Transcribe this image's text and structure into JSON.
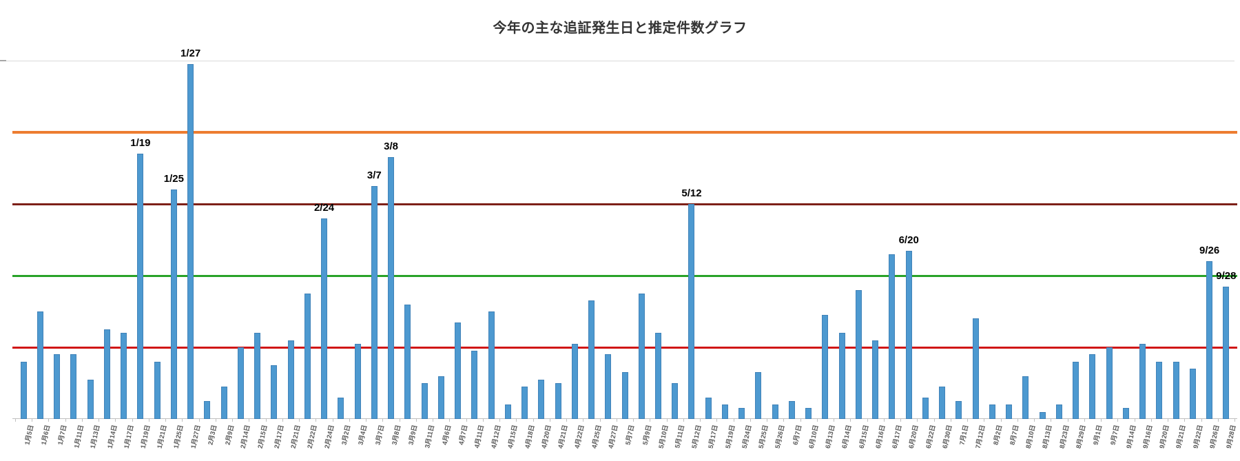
{
  "page": {
    "background": "#ffffff"
  },
  "chart_data": {
    "type": "bar",
    "title": "今年の主な追証発生日と推定件数グラフ",
    "xlabel": "",
    "ylabel": "",
    "ylim": [
      0,
      500
    ],
    "legend_position": "none",
    "grid": "top-line-only",
    "bar_color": "#4D99D0",
    "axis_color": "#bfbfbf",
    "axis_label_color": "#595959",
    "categories": [
      "1月5日",
      "1月6日",
      "1月7日",
      "1月11日",
      "1月13日",
      "1月14日",
      "1月17日",
      "1月19日",
      "1月21日",
      "1月25日",
      "1月27日",
      "2月3日",
      "2月9日",
      "2月14日",
      "2月15日",
      "2月17日",
      "2月21日",
      "2月22日",
      "2月24日",
      "3月2日",
      "3月4日",
      "3月7日",
      "3月8日",
      "3月9日",
      "3月11日",
      "4月6日",
      "4月7日",
      "4月11日",
      "4月12日",
      "4月15日",
      "4月18日",
      "4月20日",
      "4月21日",
      "4月22日",
      "4月25日",
      "4月27日",
      "5月7日",
      "5月9日",
      "5月10日",
      "5月11日",
      "5月12日",
      "5月17日",
      "5月19日",
      "5月24日",
      "5月25日",
      "5月26日",
      "6月7日",
      "6月10日",
      "6月13日",
      "6月14日",
      "6月15日",
      "6月16日",
      "6月17日",
      "6月20日",
      "6月22日",
      "6月30日",
      "7月1日",
      "7月12日",
      "8月2日",
      "8月7日",
      "8月10日",
      "8月13日",
      "8月23日",
      "8月29日",
      "9月1日",
      "9月7日",
      "9月14日",
      "9月16日",
      "9月20日",
      "9月21日",
      "9月22日",
      "9月26日",
      "9月28日"
    ],
    "values": [
      80,
      150,
      90,
      90,
      55,
      125,
      120,
      370,
      80,
      320,
      495,
      25,
      45,
      100,
      120,
      75,
      110,
      175,
      280,
      30,
      105,
      325,
      365,
      160,
      50,
      60,
      135,
      95,
      150,
      20,
      45,
      55,
      50,
      105,
      165,
      90,
      65,
      175,
      120,
      50,
      300,
      30,
      20,
      15,
      65,
      20,
      25,
      15,
      145,
      120,
      180,
      110,
      230,
      235,
      30,
      45,
      25,
      140,
      20,
      20,
      60,
      10,
      20,
      80,
      90,
      100,
      15,
      105,
      80,
      80,
      70,
      220,
      185
    ],
    "ref_lines": [
      {
        "value": 400,
        "color": "#ED7D31",
        "thickness": 4
      },
      {
        "value": 300,
        "color": "#7D2018",
        "thickness": 3
      },
      {
        "value": 200,
        "color": "#28A228",
        "thickness": 3
      },
      {
        "value": 100,
        "color": "#D01616",
        "thickness": 3
      }
    ],
    "annotations": [
      {
        "category": "1月19日",
        "label": "1/19"
      },
      {
        "category": "1月25日",
        "label": "1/25"
      },
      {
        "category": "1月27日",
        "label": "1/27"
      },
      {
        "category": "2月24日",
        "label": "2/24"
      },
      {
        "category": "3月7日",
        "label": "3/7"
      },
      {
        "category": "3月8日",
        "label": "3/8"
      },
      {
        "category": "5月12日",
        "label": "5/12"
      },
      {
        "category": "6月20日",
        "label": "6/20"
      },
      {
        "category": "9月26日",
        "label": "9/26"
      },
      {
        "category": "9月28日",
        "label": "9/28"
      }
    ]
  }
}
